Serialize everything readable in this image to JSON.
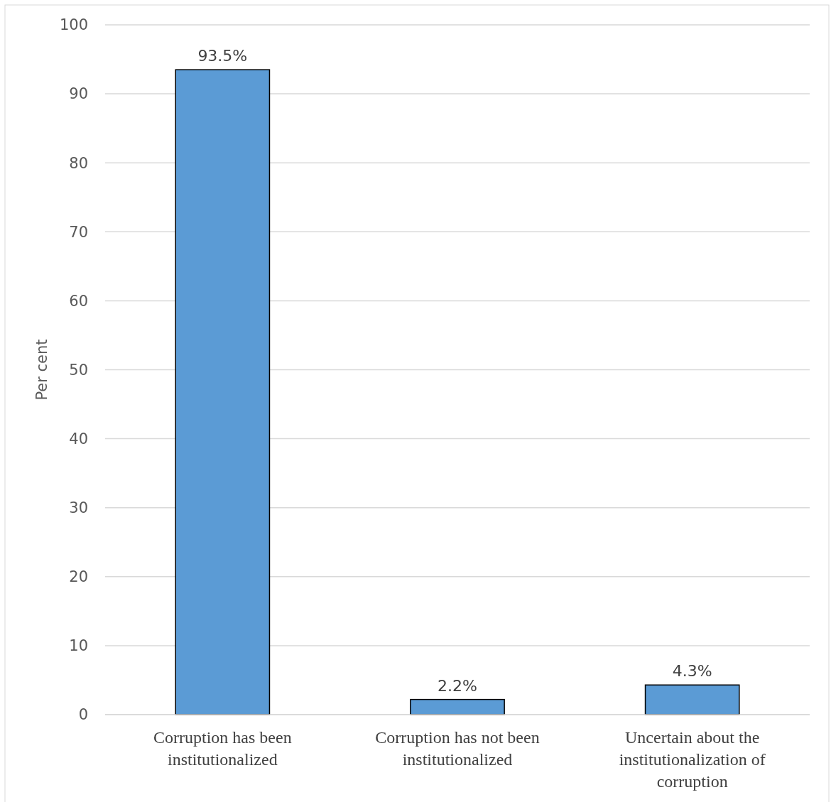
{
  "chart_data": {
    "type": "bar",
    "ylabel": "Per cent",
    "categories": [
      "Corruption has been institutionalized",
      "Corruption has not been institutionalized",
      "Uncertain about the institutionalization of corruption"
    ],
    "values": [
      93.5,
      2.2,
      4.3
    ],
    "value_labels": [
      "93.5%",
      "2.2%",
      "4.3%"
    ],
    "color": "#5b9bd5",
    "ylim": [
      0,
      100
    ],
    "yticks": [
      0,
      10,
      20,
      30,
      40,
      50,
      60,
      70,
      80,
      90,
      100
    ],
    "grid": "y"
  }
}
